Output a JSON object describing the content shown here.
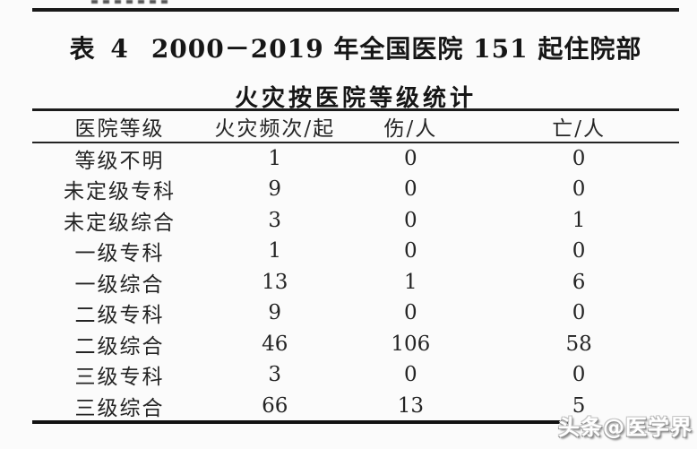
{
  "page": {
    "background": "#fbfbfb",
    "text_color": "#212121",
    "rule_color": "#191919"
  },
  "title": {
    "prefix": "表 4",
    "line1": "2000－2019 年全国医院 151 起住院部",
    "line2": "火灾按医院等级统计"
  },
  "table": {
    "columns": [
      "医院等级",
      "火灾频次/起",
      "伤/人",
      "亡/人"
    ],
    "rows": [
      [
        "等级不明",
        "1",
        "0",
        "0"
      ],
      [
        "未定级专科",
        "9",
        "0",
        "0"
      ],
      [
        "未定级综合",
        "3",
        "0",
        "1"
      ],
      [
        "一级专科",
        "1",
        "0",
        "0"
      ],
      [
        "一级综合",
        "13",
        "1",
        "6"
      ],
      [
        "二级专科",
        "9",
        "0",
        "0"
      ],
      [
        "二级综合",
        "46",
        "106",
        "58"
      ],
      [
        "三级专科",
        "3",
        "0",
        "0"
      ],
      [
        "三级综合",
        "66",
        "13",
        "5"
      ]
    ]
  },
  "watermark": {
    "text": "头条@医学界"
  }
}
